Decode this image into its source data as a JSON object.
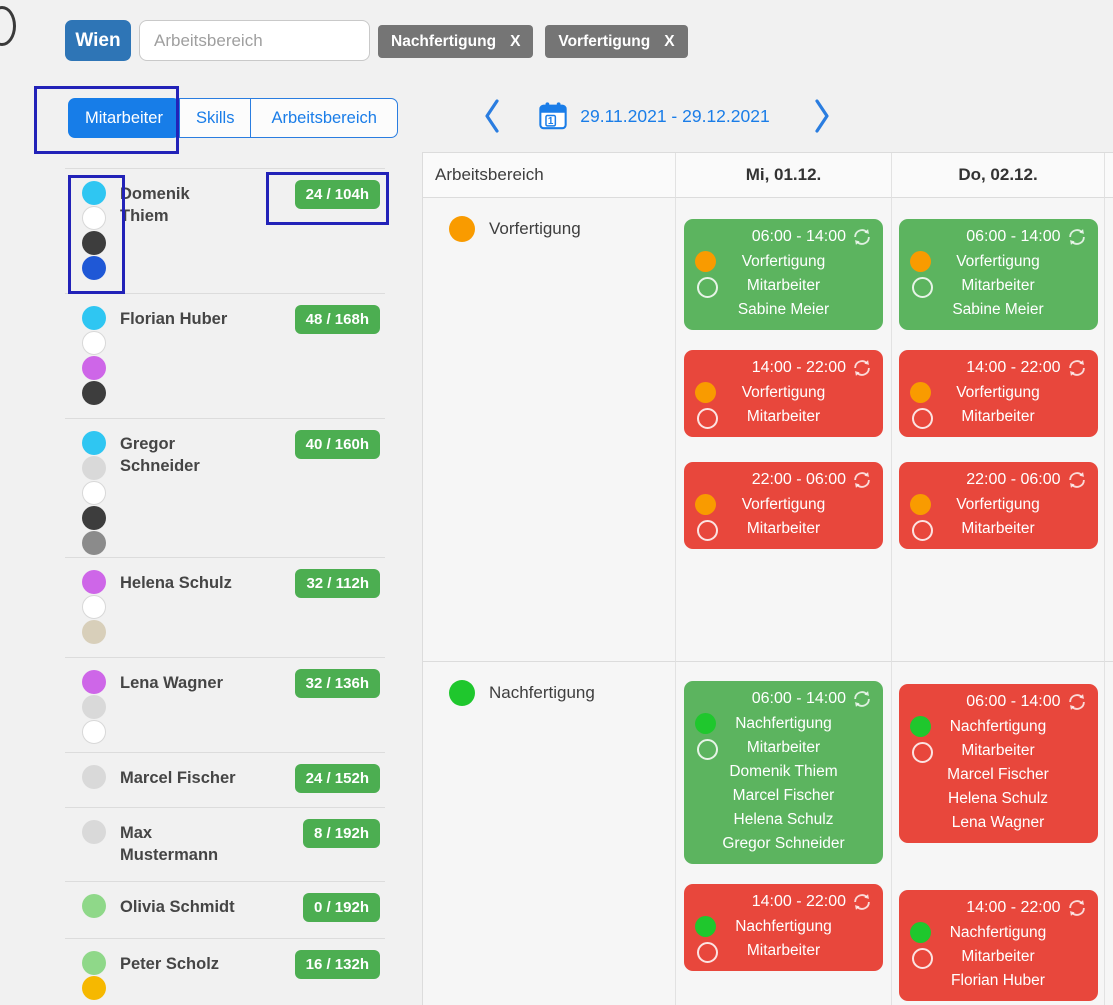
{
  "topbar": {
    "location_button": "Wien",
    "search_placeholder": "Arbeitsbereich",
    "filter_chips": [
      {
        "label": "Nachfertigung",
        "close_label": "X"
      },
      {
        "label": "Vorfertigung",
        "close_label": "X"
      }
    ]
  },
  "tabs": [
    {
      "label": "Mitarbeiter",
      "active": true
    },
    {
      "label": "Skills",
      "active": false
    },
    {
      "label": "Arbeitsbereich",
      "active": false
    }
  ],
  "date_nav": {
    "calendar_day": "1",
    "range": "29.11.2021 - 29.12.2021"
  },
  "employees": [
    {
      "name": "Domenik Thiem",
      "hours": "24 / 104h",
      "dot_colors": [
        "#2fc6f2",
        "#ffffff",
        "#3d3d3d",
        "#1f58d6"
      ]
    },
    {
      "name": "Florian Huber",
      "hours": "48 / 168h",
      "dot_colors": [
        "#2fc6f2",
        "#ffffff",
        "#ce66e8",
        "#3d3d3d"
      ]
    },
    {
      "name": "Gregor Schneider",
      "hours": "40 / 160h",
      "dot_colors": [
        "#2fc6f2",
        "#d9d9d9",
        "#ffffff",
        "#3d3d3d",
        "#8b8b8b"
      ]
    },
    {
      "name": "Helena Schulz",
      "hours": "32 / 112h",
      "dot_colors": [
        "#ce66e8",
        "#ffffff",
        "#d8cfba"
      ]
    },
    {
      "name": "Lena Wagner",
      "hours": "32 / 136h",
      "dot_colors": [
        "#ce66e8",
        "#d9d9d9",
        "#ffffff"
      ]
    },
    {
      "name": "Marcel Fischer",
      "hours": "24 / 152h",
      "dot_colors": [
        "#d9d9d9"
      ]
    },
    {
      "name": "Max Mustermann",
      "hours": "8 / 192h",
      "dot_colors": [
        "#d9d9d9"
      ]
    },
    {
      "name": "Olivia Schmidt",
      "hours": "0 / 192h",
      "dot_colors": [
        "#8fd889"
      ]
    },
    {
      "name": "Peter Scholz",
      "hours": "16 / 132h",
      "dot_colors": [
        "#8fd889",
        "#f6b800"
      ]
    }
  ],
  "schedule": {
    "area_header": "Arbeitsbereich",
    "day_headers": [
      "Mi, 01.12.",
      "Do, 02.12."
    ],
    "rows": [
      {
        "area": "Vorfertigung",
        "dot_color": "#f99b00",
        "days": [
          {
            "day": "Mi, 01.12.",
            "cards": [
              {
                "time": "06:00 - 14:00",
                "status": "green",
                "dot_color": "#f99b00",
                "area": "Vorfertigung",
                "role": "Mitarbeiter",
                "names": [
                  "Sabine Meier"
                ]
              },
              {
                "time": "14:00 - 22:00",
                "status": "red",
                "dot_color": "#f99b00",
                "area": "Vorfertigung",
                "role": "Mitarbeiter",
                "names": []
              },
              {
                "time": "22:00 - 06:00",
                "status": "red",
                "dot_color": "#f99b00",
                "area": "Vorfertigung",
                "role": "Mitarbeiter",
                "names": []
              }
            ]
          },
          {
            "day": "Do, 02.12.",
            "cards": [
              {
                "time": "06:00 - 14:00",
                "status": "green",
                "dot_color": "#f99b00",
                "area": "Vorfertigung",
                "role": "Mitarbeiter",
                "names": [
                  "Sabine Meier"
                ]
              },
              {
                "time": "14:00 - 22:00",
                "status": "red",
                "dot_color": "#f99b00",
                "area": "Vorfertigung",
                "role": "Mitarbeiter",
                "names": []
              },
              {
                "time": "22:00 - 06:00",
                "status": "red",
                "dot_color": "#f99b00",
                "area": "Vorfertigung",
                "role": "Mitarbeiter",
                "names": []
              }
            ]
          }
        ]
      },
      {
        "area": "Nachfertigung",
        "dot_color": "#1fc72d",
        "days": [
          {
            "day": "Mi, 01.12.",
            "cards": [
              {
                "time": "06:00 - 14:00",
                "status": "green",
                "dot_color": "#1fc72d",
                "area": "Nachfertigung",
                "role": "Mitarbeiter",
                "names": [
                  "Domenik Thiem",
                  "Marcel Fischer",
                  "Helena Schulz",
                  "Gregor Schneider"
                ]
              },
              {
                "time": "14:00 - 22:00",
                "status": "red",
                "dot_color": "#1fc72d",
                "area": "Nachfertigung",
                "role": "Mitarbeiter",
                "names": []
              }
            ]
          },
          {
            "day": "Do, 02.12.",
            "cards": [
              {
                "time": "06:00 - 14:00",
                "status": "red",
                "dot_color": "#1fc72d",
                "area": "Nachfertigung",
                "role": "Mitarbeiter",
                "names": [
                  "Marcel Fischer",
                  "Helena Schulz",
                  "Lena Wagner"
                ]
              },
              {
                "time": "14:00 - 22:00",
                "status": "red",
                "dot_color": "#1fc72d",
                "area": "Nachfertigung",
                "role": "Mitarbeiter",
                "names": [
                  "Florian Huber"
                ]
              }
            ]
          }
        ]
      }
    ]
  },
  "colors": {
    "accent_blue": "#1a7de8",
    "annotation_blue": "#2222b8",
    "wien_blue": "#2e75b6",
    "chip_gray": "#757575",
    "badge_green": "#4cae51",
    "card_green": "#5cb45f",
    "card_red": "#e8473c",
    "shift_dot_orange": "#f99b00",
    "shift_dot_green": "#1fc72d"
  }
}
